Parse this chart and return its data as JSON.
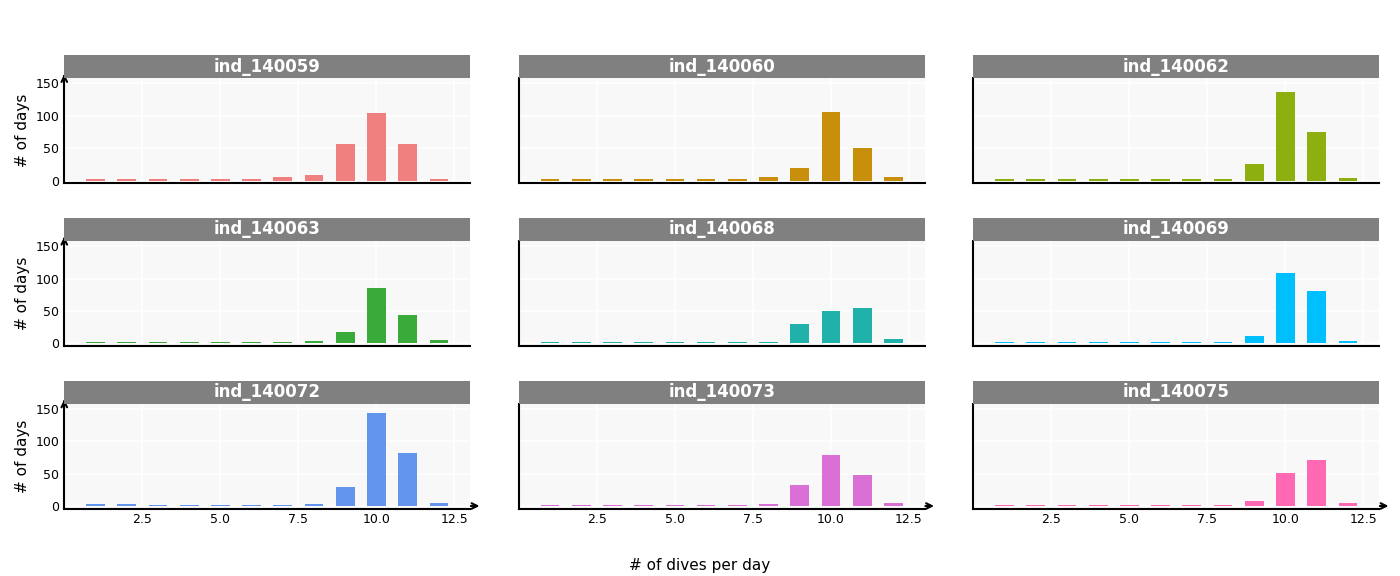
{
  "individuals": [
    {
      "name": "ind_140059",
      "color": "#f08080",
      "bar_positions": [
        1,
        2,
        3,
        4,
        5,
        6,
        7,
        8,
        9,
        10,
        11,
        12
      ],
      "bar_heights": [
        2,
        2,
        2,
        2,
        2,
        2,
        6,
        8,
        57,
        104,
        57,
        2
      ]
    },
    {
      "name": "ind_140060",
      "color": "#c8900a",
      "bar_positions": [
        1,
        2,
        3,
        4,
        5,
        6,
        7,
        8,
        9,
        10,
        11,
        12
      ],
      "bar_heights": [
        2,
        2,
        2,
        2,
        2,
        2,
        2,
        5,
        20,
        106,
        50,
        5
      ]
    },
    {
      "name": "ind_140062",
      "color": "#8db010",
      "bar_positions": [
        1,
        2,
        3,
        4,
        5,
        6,
        7,
        8,
        9,
        10,
        11,
        12
      ],
      "bar_heights": [
        2,
        2,
        2,
        2,
        2,
        2,
        2,
        2,
        26,
        137,
        75,
        4
      ]
    },
    {
      "name": "ind_140063",
      "color": "#3aaa3a",
      "bar_positions": [
        1,
        2,
        3,
        4,
        5,
        6,
        7,
        8,
        9,
        10,
        11,
        12
      ],
      "bar_heights": [
        2,
        2,
        2,
        2,
        2,
        2,
        2,
        3,
        18,
        85,
        44,
        5
      ]
    },
    {
      "name": "ind_140068",
      "color": "#20b2aa",
      "bar_positions": [
        1,
        2,
        3,
        4,
        5,
        6,
        7,
        8,
        9,
        10,
        11,
        12
      ],
      "bar_heights": [
        2,
        2,
        2,
        2,
        2,
        2,
        2,
        2,
        30,
        50,
        55,
        6
      ]
    },
    {
      "name": "ind_140069",
      "color": "#00bfff",
      "bar_positions": [
        1,
        2,
        3,
        4,
        5,
        6,
        7,
        8,
        9,
        10,
        11,
        12
      ],
      "bar_heights": [
        2,
        2,
        2,
        2,
        2,
        2,
        2,
        2,
        12,
        108,
        80,
        3
      ]
    },
    {
      "name": "ind_140072",
      "color": "#6495ed",
      "bar_positions": [
        1,
        2,
        3,
        4,
        5,
        6,
        7,
        8,
        9,
        10,
        11,
        12
      ],
      "bar_heights": [
        3,
        3,
        2,
        2,
        2,
        2,
        2,
        3,
        30,
        143,
        82,
        4
      ]
    },
    {
      "name": "ind_140073",
      "color": "#da70d6",
      "bar_positions": [
        1,
        2,
        3,
        4,
        5,
        6,
        7,
        8,
        9,
        10,
        11,
        12
      ],
      "bar_heights": [
        2,
        2,
        2,
        2,
        2,
        2,
        2,
        3,
        32,
        78,
        48,
        5
      ]
    },
    {
      "name": "ind_140075",
      "color": "#ff69b4",
      "bar_positions": [
        1,
        2,
        3,
        4,
        5,
        6,
        7,
        8,
        9,
        10,
        11,
        12
      ],
      "bar_heights": [
        2,
        2,
        2,
        2,
        2,
        2,
        2,
        2,
        7,
        51,
        71,
        4
      ]
    }
  ],
  "xlim": [
    0,
    13
  ],
  "ylim": [
    -4,
    158
  ],
  "xticks": [
    2.5,
    5.0,
    7.5,
    10.0,
    12.5
  ],
  "yticks": [
    0,
    50,
    100,
    150
  ],
  "xlabel": "# of dives per day",
  "ylabel": "# of days",
  "title_bg": "#808080",
  "title_color": "white",
  "subplot_bg": "#f8f8f8",
  "grid_color": "white",
  "nrows": 3,
  "ncols": 3,
  "bar_width": 0.6,
  "title_fontsize": 12,
  "tick_fontsize": 9,
  "label_fontsize": 11
}
